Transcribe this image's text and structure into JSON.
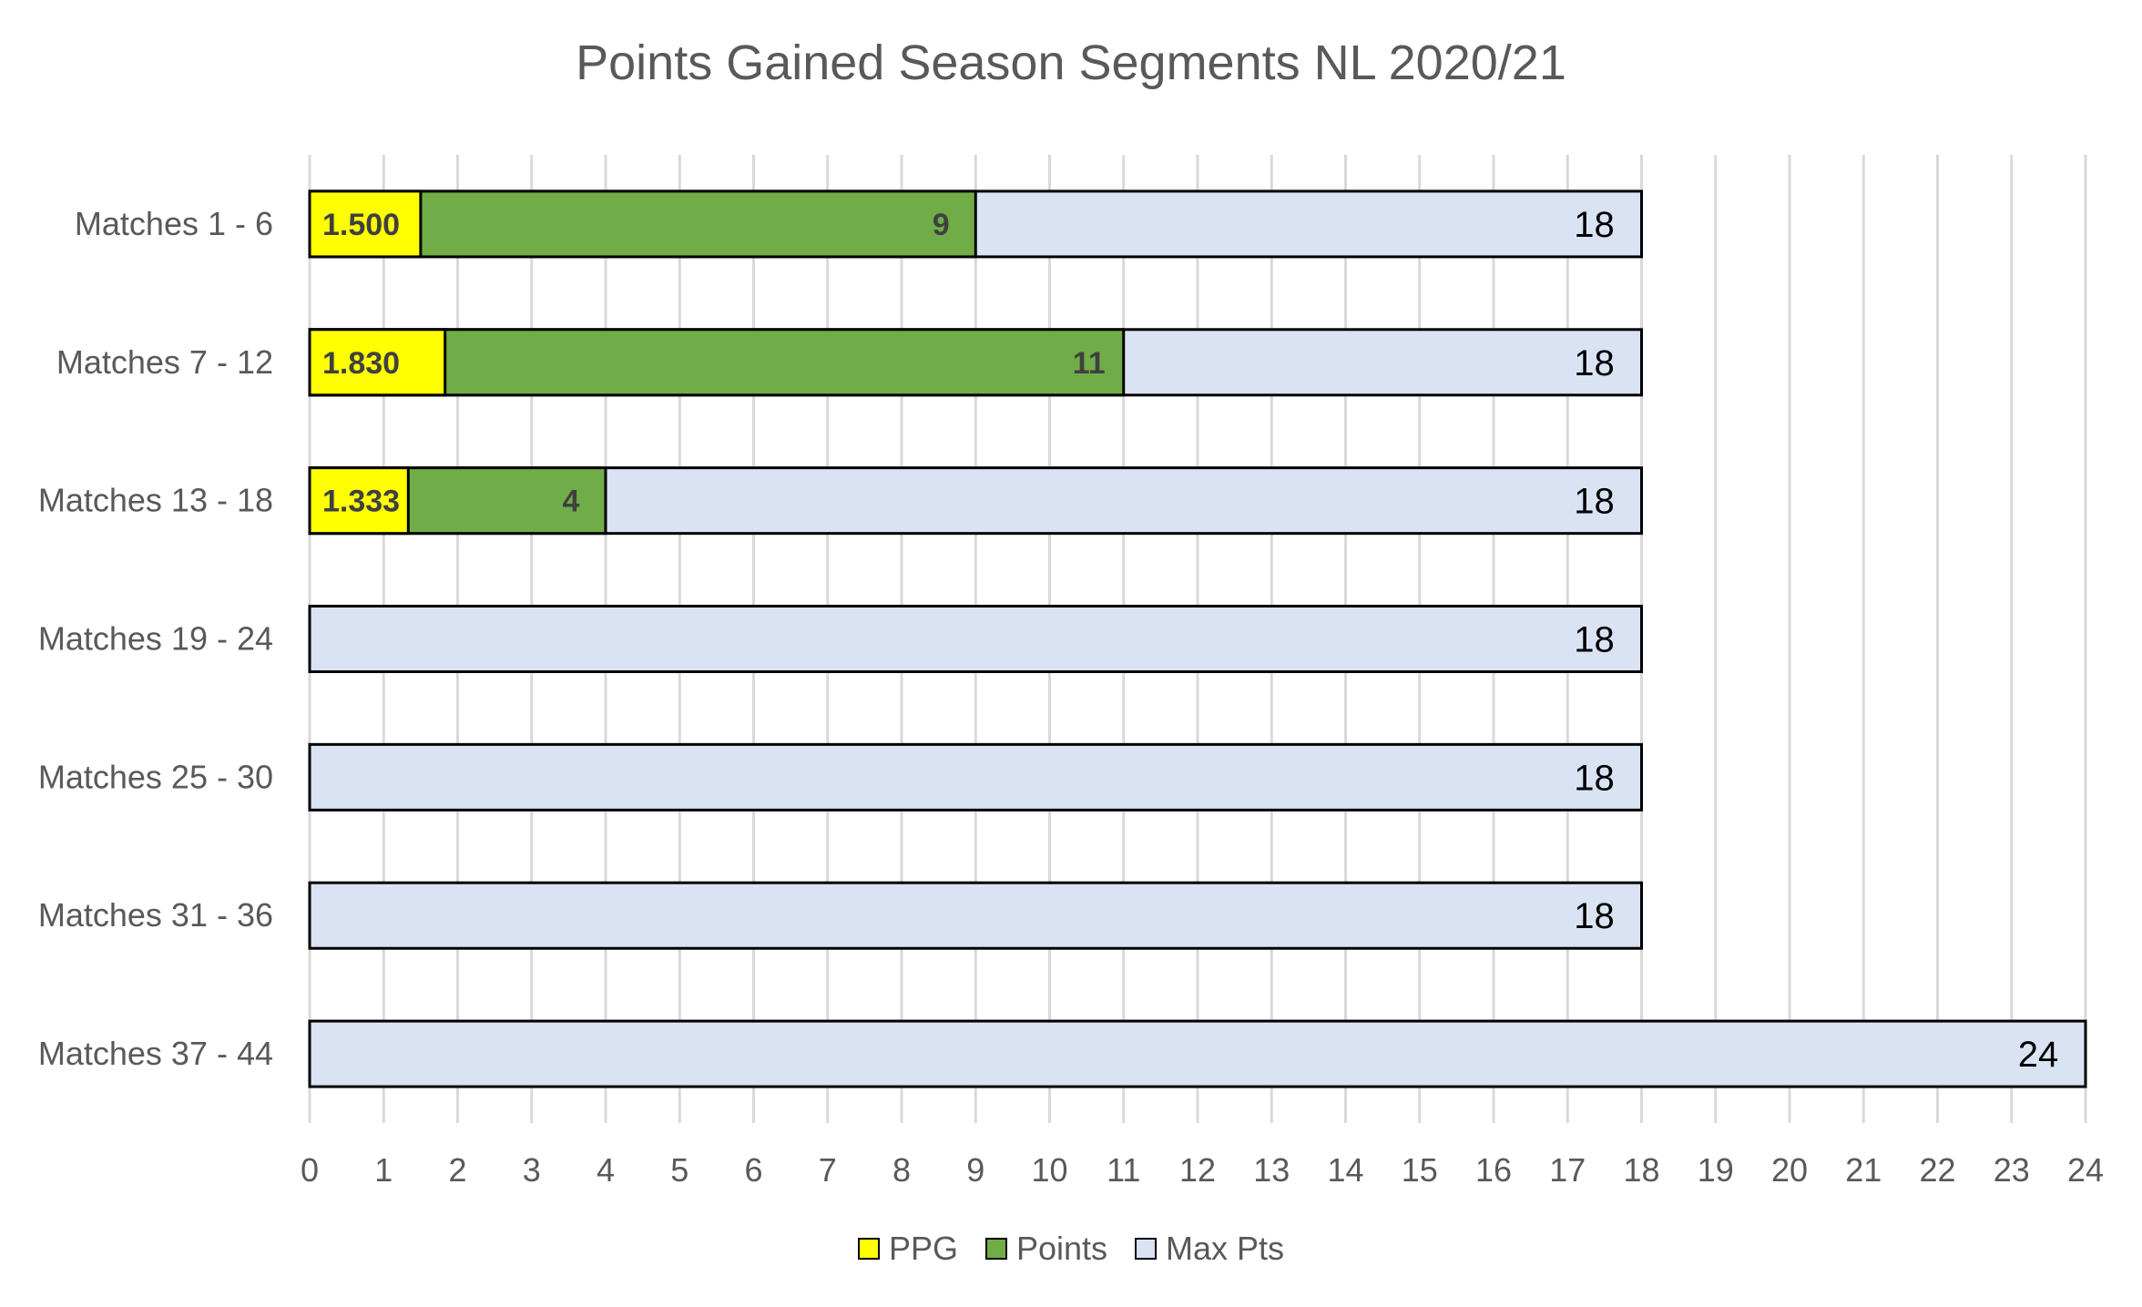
{
  "chart_data": {
    "type": "bar",
    "orientation": "horizontal",
    "title": "Points Gained Season Segments NL 2020/21",
    "categories": [
      "Matches 1 - 6",
      "Matches 7 - 12",
      "Matches 13 - 18",
      "Matches 19 - 24",
      "Matches 25 - 30",
      "Matches 31 - 36",
      "Matches 37 - 44"
    ],
    "series": [
      {
        "name": "Max Pts",
        "color": "#dae3f3",
        "values": [
          18,
          18,
          18,
          18,
          18,
          18,
          24
        ],
        "labels": [
          "18",
          "18",
          "18",
          "18",
          "18",
          "18",
          "24"
        ]
      },
      {
        "name": "Points",
        "color": "#70ad47",
        "values": [
          9,
          11,
          4,
          null,
          null,
          null,
          null
        ],
        "labels": [
          "9",
          "11",
          "4",
          "",
          "",
          "",
          ""
        ]
      },
      {
        "name": "PPG",
        "color": "#ffff00",
        "values": [
          1.5,
          1.83,
          1.333,
          null,
          null,
          null,
          null
        ],
        "labels": [
          "1.500",
          "1.830",
          "1.333",
          "",
          "",
          "",
          ""
        ]
      }
    ],
    "xlim": [
      0,
      24
    ],
    "x_ticks": [
      "0",
      "1",
      "2",
      "3",
      "4",
      "5",
      "6",
      "7",
      "8",
      "9",
      "10",
      "11",
      "12",
      "13",
      "14",
      "15",
      "16",
      "17",
      "18",
      "19",
      "20",
      "21",
      "22",
      "23",
      "24"
    ],
    "grid": "vertical",
    "legend": {
      "position": "bottom",
      "order": [
        "PPG",
        "Points",
        "Max Pts"
      ]
    }
  }
}
